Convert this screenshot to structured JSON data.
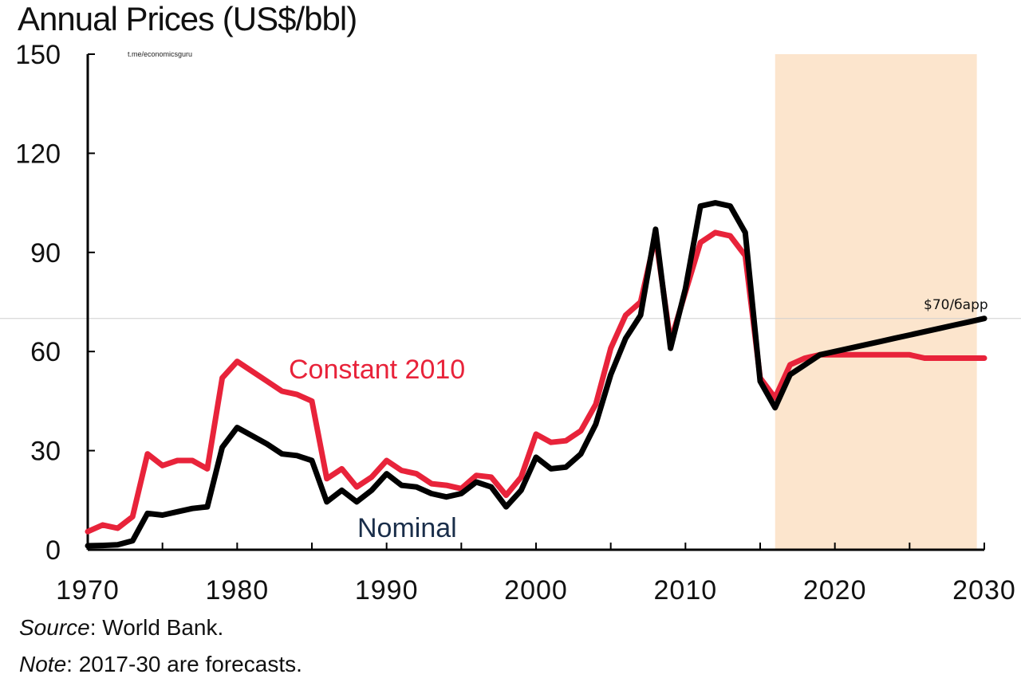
{
  "chart_data": {
    "type": "line",
    "title": "Annual Prices (US$/bbl)",
    "watermark": "t.me/economicsguru",
    "y_ticks": [
      "150",
      "120",
      "90",
      "60",
      "30",
      "0"
    ],
    "x_ticks": [
      "1970",
      "1980",
      "1990",
      "2000",
      "2010",
      "2020",
      "2030"
    ],
    "ylim": [
      0,
      150
    ],
    "xlim": [
      1970,
      2030
    ],
    "forecast_shading": {
      "from": 2016,
      "to": 2029.5,
      "color": "#fce5cd"
    },
    "reference_line": {
      "y": 70,
      "label": "$70/барр"
    },
    "series": [
      {
        "name": "Nominal",
        "color": "#000000",
        "label_color": "#1a2e4a",
        "x": [
          1970,
          1971,
          1972,
          1973,
          1974,
          1975,
          1976,
          1977,
          1978,
          1979,
          1980,
          1981,
          1982,
          1983,
          1984,
          1985,
          1986,
          1987,
          1988,
          1989,
          1990,
          1991,
          1992,
          1993,
          1994,
          1995,
          1996,
          1997,
          1998,
          1999,
          2000,
          2001,
          2002,
          2003,
          2004,
          2005,
          2006,
          2007,
          2008,
          2009,
          2010,
          2011,
          2012,
          2013,
          2014,
          2015,
          2016,
          2017,
          2018,
          2019,
          2020,
          2021,
          2022,
          2023,
          2024,
          2025,
          2026,
          2027,
          2028,
          2029,
          2030
        ],
        "values": [
          1.2,
          1.3,
          1.5,
          2.7,
          11,
          10.5,
          11.5,
          12.5,
          13,
          31,
          37,
          34.5,
          32,
          29,
          28.5,
          27,
          14.5,
          18,
          14.5,
          18,
          23,
          19.5,
          19,
          17,
          16,
          17,
          20.5,
          19,
          13,
          18,
          28,
          24.5,
          25,
          29,
          38,
          53,
          64,
          71,
          97,
          61,
          79,
          104,
          105,
          104,
          96,
          51,
          43,
          53,
          56,
          59,
          60,
          61,
          62,
          63,
          64,
          65,
          66,
          67,
          68,
          69,
          70
        ]
      },
      {
        "name": "Constant 2010",
        "color": "#e8233a",
        "label_color": "#e8233a",
        "x": [
          1970,
          1971,
          1972,
          1973,
          1974,
          1975,
          1976,
          1977,
          1978,
          1979,
          1980,
          1981,
          1982,
          1983,
          1984,
          1985,
          1986,
          1987,
          1988,
          1989,
          1990,
          1991,
          1992,
          1993,
          1994,
          1995,
          1996,
          1997,
          1998,
          1999,
          2000,
          2001,
          2002,
          2003,
          2004,
          2005,
          2006,
          2007,
          2008,
          2009,
          2010,
          2011,
          2012,
          2013,
          2014,
          2015,
          2016,
          2017,
          2018,
          2019,
          2020,
          2021,
          2022,
          2023,
          2024,
          2025,
          2026,
          2027,
          2028,
          2029,
          2030
        ],
        "values": [
          5.5,
          7.5,
          6.5,
          10,
          29,
          25.5,
          27,
          27,
          24.5,
          52,
          57,
          54,
          51,
          48,
          47,
          45,
          21.5,
          24.5,
          19,
          22,
          27,
          24,
          23,
          20,
          19.5,
          18.5,
          22.5,
          22,
          16.5,
          22,
          35,
          32.5,
          33,
          36,
          44,
          61,
          71,
          75,
          95,
          63,
          78,
          93,
          96,
          95,
          89,
          52,
          46,
          56,
          58,
          59,
          59,
          59,
          59,
          59,
          59,
          59,
          58,
          58,
          58,
          58,
          58
        ]
      }
    ],
    "series_labels": {
      "nominal": "Nominal",
      "constant": "Constant 2010"
    }
  },
  "footer": {
    "source_label": "Source",
    "source_text": ": World Bank.",
    "note_label": "Note",
    "note_text": ": 2017-30 are forecasts."
  }
}
